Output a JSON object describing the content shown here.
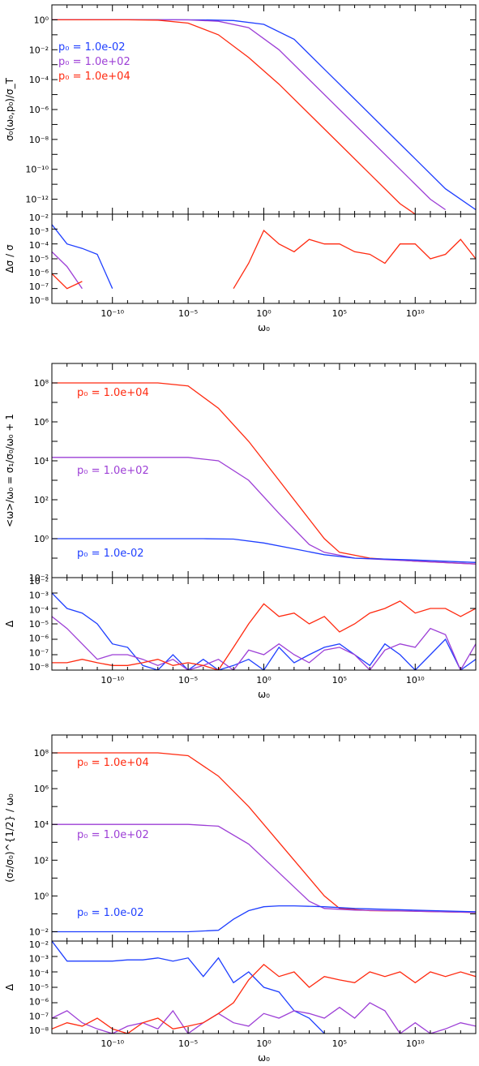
{
  "colors": {
    "blue": "#1f3fff",
    "purple": "#9d3fd6",
    "red": "#ff2a10",
    "axis": "#000000"
  },
  "chart_data": [
    {
      "type": "line",
      "panel": "top",
      "scale": "log-log",
      "ylabel": "σ₀(ω₀,p₀)/σ_T",
      "xlim": [
        1e-14,
        100000000000000.0
      ],
      "ylim": [
        1e-13,
        10
      ],
      "yticks": [
        "10⁰",
        "10⁻²",
        "10⁻⁴",
        "10⁻⁶",
        "10⁻⁸",
        "10⁻¹⁰",
        "10⁻¹²"
      ],
      "legend": [
        {
          "label": "p₀ = 1.0e-02",
          "color": "#1f3fff"
        },
        {
          "label": "p₀ = 1.0e+02",
          "color": "#9d3fd6"
        },
        {
          "label": "p₀ = 1.0e+04",
          "color": "#ff2a10"
        }
      ],
      "series": [
        {
          "name": "p₀ = 1.0e-02",
          "color": "#1f3fff",
          "x": [
            1e-14,
            1e-06,
            0.0001,
            0.01,
            1,
            100,
            10000.0,
            1000000.0,
            100000000.0,
            10000000000.0,
            1000000000000.0,
            100000000000000.0
          ],
          "y": [
            1,
            1,
            0.99,
            0.9,
            0.5,
            0.05,
            0.0005,
            5e-06,
            5e-08,
            5e-10,
            5e-12,
            2e-13
          ]
        },
        {
          "name": "p₀ = 1.0e+02",
          "color": "#9d3fd6",
          "x": [
            1e-14,
            1e-07,
            1e-05,
            0.001,
            0.1,
            10,
            1000.0,
            100000.0,
            10000000.0,
            1000000000.0,
            100000000000.0,
            1000000000000.0
          ],
          "y": [
            1,
            1,
            0.99,
            0.8,
            0.3,
            0.01,
            0.0001,
            1e-06,
            1e-08,
            1e-10,
            1e-12,
            2e-13
          ]
        },
        {
          "name": "p₀ = 1.0e+04",
          "color": "#ff2a10",
          "x": [
            1e-14,
            1e-09,
            1e-07,
            1e-05,
            0.001,
            0.1,
            10,
            1000.0,
            100000.0,
            10000000.0,
            1000000000.0,
            10000000000.0
          ],
          "y": [
            1,
            1,
            0.95,
            0.6,
            0.1,
            0.003,
            5e-05,
            5e-07,
            5e-09,
            5e-11,
            5e-13,
            1e-13
          ]
        }
      ]
    },
    {
      "type": "line",
      "panel": "top-residual",
      "scale": "log-log",
      "ylabel": "Δσ / σ",
      "xlabel": "ω₀",
      "xlim": [
        1e-14,
        100000000000000.0
      ],
      "ylim": [
        1e-08,
        0.01
      ],
      "yticks": [
        "10⁻²",
        "10⁻³",
        "10⁻⁴",
        "10⁻⁵",
        "10⁻⁶",
        "10⁻⁷",
        "10⁻⁸"
      ],
      "xticks": [
        "10⁻¹⁰",
        "10⁻⁵",
        "10⁰",
        "10⁵",
        "10¹⁰"
      ],
      "series": [
        {
          "name": "p₀ = 1.0e-02",
          "color": "#1f3fff",
          "x": [
            1e-14,
            1e-13,
            1e-12,
            1e-11,
            1e-10
          ],
          "y": [
            0.002,
            0.0001,
            5e-05,
            2e-05,
            1e-07
          ]
        },
        {
          "name": "p₀ = 1.0e+02",
          "color": "#9d3fd6",
          "x": [
            1e-14,
            1e-13,
            1e-12
          ],
          "y": [
            3e-05,
            3e-06,
            1e-07
          ]
        },
        {
          "name": "p₀ = 1.0e+04",
          "color": "#ff2a10",
          "x": [
            1e-14,
            1e-13,
            1e-12
          ],
          "y": [
            1e-06,
            1e-07,
            3e-07
          ]
        },
        {
          "name": "p₀ = 1.0e+04",
          "color": "#ff2a10",
          "x": [
            0.01,
            0.1,
            1,
            10,
            100,
            1000.0,
            10000.0,
            100000.0,
            1000000.0,
            10000000.0,
            100000000.0,
            1000000000.0,
            10000000000.0,
            100000000000.0,
            1000000000000.0,
            10000000000000.0,
            100000000000000.0
          ],
          "y": [
            1e-07,
            5e-06,
            0.0008,
            0.0001,
            3e-05,
            0.0002,
            0.0001,
            0.0001,
            3e-05,
            2e-05,
            5e-06,
            0.0001,
            0.0001,
            1e-05,
            2e-05,
            0.0002,
            1e-05
          ]
        }
      ]
    },
    {
      "type": "line",
      "panel": "middle",
      "scale": "log-log",
      "ylabel": "<ω>/ω₀ = σ₁/σ₀/ω₀ + 1",
      "xlim": [
        1e-14,
        100000000000000.0
      ],
      "ylim": [
        0.01,
        1000000000.0
      ],
      "yticks": [
        "10⁸",
        "10⁶",
        "10⁴",
        "10²",
        "10⁰",
        "10⁻²"
      ],
      "legend": [
        {
          "label": "p₀ = 1.0e+04",
          "color": "#ff2a10"
        },
        {
          "label": "p₀ = 1.0e+02",
          "color": "#9d3fd6"
        },
        {
          "label": "p₀ = 1.0e-02",
          "color": "#1f3fff"
        }
      ],
      "series": [
        {
          "name": "p₀ = 1.0e+04",
          "color": "#ff2a10",
          "x": [
            1e-14,
            1e-07,
            1e-05,
            0.001,
            0.1,
            10,
            1000.0,
            10000.0,
            100000.0,
            10000000.0,
            10000000000.0,
            100000000000000.0
          ],
          "y": [
            100000000.0,
            100000000.0,
            70000000.0,
            5000000.0,
            100000.0,
            1000,
            10,
            1,
            0.2,
            0.1,
            0.07,
            0.05
          ]
        },
        {
          "name": "p₀ = 1.0e+02",
          "color": "#9d3fd6",
          "x": [
            1e-14,
            1e-05,
            0.001,
            0.1,
            10,
            1000.0,
            10000.0,
            1000000.0,
            10000000000.0,
            100000000000000.0
          ],
          "y": [
            15000.0,
            15000.0,
            10000.0,
            1000,
            20,
            0.5,
            0.2,
            0.1,
            0.07,
            0.05
          ]
        },
        {
          "name": "p₀ = 1.0e-02",
          "color": "#1f3fff",
          "x": [
            1e-14,
            0.0001,
            0.01,
            1,
            100,
            10000.0,
            1000000.0,
            10000000000.0,
            100000000000000.0
          ],
          "y": [
            1,
            1,
            0.95,
            0.6,
            0.3,
            0.15,
            0.1,
            0.08,
            0.06
          ]
        }
      ]
    },
    {
      "type": "line",
      "panel": "middle-residual",
      "scale": "log-log",
      "ylabel": "Δ",
      "xlabel": "ω₀",
      "xlim": [
        1e-14,
        100000000000000.0
      ],
      "ylim": [
        1e-08,
        0.01
      ],
      "yticks": [
        "10⁻²",
        "10⁻³",
        "10⁻⁴",
        "10⁻⁵",
        "10⁻⁶",
        "10⁻⁷",
        "10⁻⁸"
      ],
      "xticks": [
        "10⁻¹⁰",
        "10⁻⁵",
        "10⁰",
        "10⁵",
        "10¹⁰"
      ],
      "series": [
        {
          "name": "p₀ = 1.0e-02",
          "color": "#1f3fff",
          "x": [
            1e-14,
            1e-13,
            1e-12,
            1e-11,
            1e-10,
            1e-09,
            1e-08,
            1e-07,
            1e-06,
            1e-05,
            0.0001,
            0.001,
            0.01,
            0.1,
            1,
            10,
            100,
            1000.0,
            10000.0,
            100000.0,
            1000000.0,
            10000000.0,
            100000000.0,
            1000000000.0,
            10000000000.0,
            100000000000.0,
            1000000000000.0,
            10000000000000.0,
            100000000000000.0
          ],
          "y": [
            0.001,
            0.0001,
            5e-05,
            1e-05,
            5e-07,
            3e-07,
            2e-08,
            1e-08,
            1e-07,
            1e-08,
            5e-08,
            1e-08,
            2e-08,
            5e-08,
            1e-08,
            3e-07,
            3e-08,
            1e-07,
            3e-07,
            5e-07,
            1e-07,
            2e-08,
            5e-07,
            1e-07,
            1e-08,
            1e-07,
            1e-06,
            1e-08,
            5e-08
          ]
        },
        {
          "name": "p₀ = 1.0e+02",
          "color": "#9d3fd6",
          "x": [
            1e-14,
            1e-13,
            1e-12,
            1e-11,
            1e-10,
            1e-09,
            1e-08,
            1e-07,
            1e-06,
            1e-05,
            0.0001,
            0.001,
            0.01,
            0.1,
            1,
            10,
            100,
            1000.0,
            10000.0,
            100000.0,
            1000000.0,
            10000000.0,
            100000000.0,
            1000000000.0,
            10000000000.0,
            100000000000.0,
            1000000000000.0,
            10000000000000.0,
            100000000000000.0
          ],
          "y": [
            3e-05,
            5e-06,
            5e-07,
            5e-08,
            1e-07,
            1e-07,
            5e-08,
            2e-08,
            5e-08,
            1e-08,
            2e-08,
            5e-08,
            1e-08,
            2e-07,
            1e-07,
            5e-07,
            1e-07,
            3e-08,
            2e-07,
            3e-07,
            1e-07,
            1e-08,
            2e-07,
            5e-07,
            3e-07,
            5e-06,
            2e-06,
            1e-08,
            5e-07
          ]
        },
        {
          "name": "p₀ = 1.0e+04",
          "color": "#ff2a10",
          "x": [
            1e-14,
            1e-13,
            1e-12,
            1e-11,
            1e-10,
            1e-09,
            1e-08,
            1e-07,
            1e-06,
            1e-05,
            0.0001,
            0.001,
            0.01,
            0.1,
            1,
            10,
            100,
            1000.0,
            10000.0,
            100000.0,
            1000000.0,
            10000000.0,
            100000000.0,
            1000000000.0,
            10000000000.0,
            100000000000.0,
            1000000000000.0,
            10000000000000.0,
            100000000000000.0
          ],
          "y": [
            3e-08,
            3e-08,
            5e-08,
            3e-08,
            2e-08,
            2e-08,
            3e-08,
            5e-08,
            2e-08,
            3e-08,
            2e-08,
            1e-08,
            3e-07,
            1e-05,
            0.0002,
            3e-05,
            5e-05,
            1e-05,
            3e-05,
            3e-06,
            1e-05,
            5e-05,
            0.0001,
            0.0003,
            5e-05,
            0.0001,
            0.0001,
            3e-05,
            0.0001
          ]
        }
      ]
    },
    {
      "type": "line",
      "panel": "bottom",
      "scale": "log-log",
      "ylabel": "(σ₂/σ₀)^{1/2} / ω₀",
      "xlim": [
        1e-14,
        100000000000000.0
      ],
      "ylim": [
        0.003,
        1000000000.0
      ],
      "yticks": [
        "10⁸",
        "10⁶",
        "10⁴",
        "10²",
        "10⁰",
        "10⁻²"
      ],
      "legend": [
        {
          "label": "p₀ = 1.0e+04",
          "color": "#ff2a10"
        },
        {
          "label": "p₀ = 1.0e+02",
          "color": "#9d3fd6"
        },
        {
          "label": "p₀ = 1.0e-02",
          "color": "#1f3fff"
        }
      ],
      "series": [
        {
          "name": "p₀ = 1.0e+04",
          "color": "#ff2a10",
          "x": [
            1e-14,
            1e-07,
            1e-05,
            0.001,
            0.1,
            10,
            1000.0,
            10000.0,
            100000.0,
            10000000.0,
            10000000000.0,
            100000000000000.0
          ],
          "y": [
            100000000.0,
            100000000.0,
            70000000.0,
            5000000.0,
            100000.0,
            1000,
            10,
            1,
            0.2,
            0.15,
            0.14,
            0.12
          ]
        },
        {
          "name": "p₀ = 1.0e+02",
          "color": "#9d3fd6",
          "x": [
            1e-14,
            1e-05,
            0.001,
            0.1,
            10,
            1000.0,
            10000.0,
            100000.0,
            1000000.0,
            10000000000.0,
            100000000000000.0
          ],
          "y": [
            10000.0,
            10000.0,
            8000,
            800,
            20,
            0.5,
            0.2,
            0.18,
            0.16,
            0.14,
            0.12
          ]
        },
        {
          "name": "p₀ = 1.0e-02",
          "color": "#1f3fff",
          "x": [
            1e-14,
            1e-05,
            0.001,
            0.01,
            0.1,
            1,
            10,
            100,
            10000.0,
            1000000.0,
            10000000000.0,
            100000000000000.0
          ],
          "y": [
            0.01,
            0.01,
            0.012,
            0.05,
            0.15,
            0.25,
            0.28,
            0.28,
            0.25,
            0.2,
            0.16,
            0.13
          ]
        }
      ]
    },
    {
      "type": "line",
      "panel": "bottom-residual",
      "scale": "log-log",
      "ylabel": "Δ",
      "xlabel": "ω₀",
      "xlim": [
        1e-14,
        100000000000000.0
      ],
      "ylim": [
        1e-08,
        0.01
      ],
      "yticks": [
        "10⁻²",
        "10⁻³",
        "10⁻⁴",
        "10⁻⁵",
        "10⁻⁶",
        "10⁻⁷",
        "10⁻⁸"
      ],
      "xticks": [
        "10⁻¹⁰",
        "10⁻⁵",
        "10⁰",
        "10⁵",
        "10¹⁰"
      ],
      "series": [
        {
          "name": "p₀ = 1.0e-02",
          "color": "#1f3fff",
          "x": [
            1e-14,
            1e-13,
            1e-12,
            1e-11,
            1e-10,
            1e-09,
            1e-08,
            1e-07,
            1e-06,
            1e-05,
            0.0001,
            0.001,
            0.01,
            0.1,
            1,
            10,
            100,
            1000.0,
            10000.0,
            100000.0
          ],
          "y": [
            0.01,
            0.0005,
            0.0005,
            0.0005,
            0.0005,
            0.0006,
            0.0006,
            0.0008,
            0.0005,
            0.0008,
            5e-05,
            0.0008,
            2e-05,
            0.0001,
            1e-05,
            5e-06,
            3e-07,
            1e-07,
            1e-08,
            5e-09
          ]
        },
        {
          "name": "p₀ = 1.0e+02",
          "color": "#9d3fd6",
          "x": [
            1e-14,
            1e-13,
            1e-12,
            1e-11,
            1e-10,
            1e-09,
            1e-08,
            1e-07,
            1e-06,
            1e-05,
            0.0001,
            0.001,
            0.01,
            0.1,
            1,
            10,
            100,
            1000.0,
            10000.0,
            100000.0,
            1000000.0,
            10000000.0,
            100000000.0,
            1000000000.0,
            10000000000.0,
            100000000000.0,
            1000000000000.0,
            10000000000000.0,
            100000000000000.0
          ],
          "y": [
            1e-07,
            3e-07,
            5e-08,
            2e-08,
            1e-08,
            3e-08,
            5e-08,
            2e-08,
            3e-07,
            1e-08,
            5e-08,
            2e-07,
            5e-08,
            3e-08,
            2e-07,
            1e-07,
            3e-07,
            2e-07,
            1e-07,
            5e-07,
            1e-07,
            1e-06,
            3e-07,
            1e-08,
            5e-08,
            1e-08,
            2e-08,
            5e-08,
            3e-08
          ]
        },
        {
          "name": "p₀ = 1.0e+04",
          "color": "#ff2a10",
          "x": [
            1e-14,
            1e-13,
            1e-12,
            1e-11,
            1e-10,
            1e-09,
            1e-08,
            1e-07,
            1e-06,
            1e-05,
            0.0001,
            0.001,
            0.01,
            0.1,
            1,
            10,
            100,
            1000.0,
            10000.0,
            100000.0,
            1000000.0,
            10000000.0,
            100000000.0,
            1000000000.0,
            10000000000.0,
            100000000000.0,
            1000000000000.0,
            10000000000000.0,
            100000000000000.0
          ],
          "y": [
            2e-08,
            5e-08,
            3e-08,
            1e-07,
            2e-08,
            1e-08,
            5e-08,
            1e-07,
            2e-08,
            3e-08,
            5e-08,
            2e-07,
            1e-06,
            3e-05,
            0.0003,
            5e-05,
            0.0001,
            1e-05,
            5e-05,
            3e-05,
            2e-05,
            0.0001,
            5e-05,
            0.0001,
            2e-05,
            0.0001,
            5e-05,
            0.0001,
            5e-05
          ]
        }
      ]
    }
  ]
}
